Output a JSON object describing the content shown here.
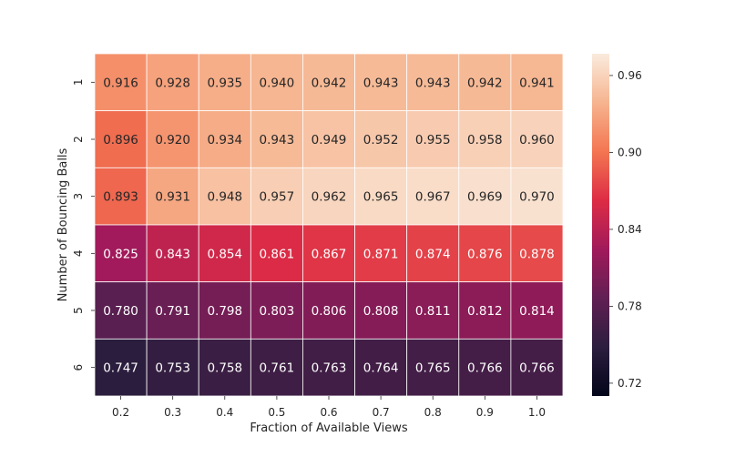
{
  "chart_data": {
    "type": "heatmap",
    "title": "",
    "xlabel": "Fraction of Available Views",
    "ylabel": "Number of Bouncing Balls",
    "x_categories": [
      "0.2",
      "0.3",
      "0.4",
      "0.5",
      "0.6",
      "0.7",
      "0.8",
      "0.9",
      "1.0"
    ],
    "y_categories": [
      "1",
      "2",
      "3",
      "4",
      "5",
      "6"
    ],
    "values": [
      [
        0.916,
        0.928,
        0.935,
        0.94,
        0.942,
        0.943,
        0.943,
        0.942,
        0.941
      ],
      [
        0.896,
        0.92,
        0.934,
        0.943,
        0.949,
        0.952,
        0.955,
        0.958,
        0.96
      ],
      [
        0.893,
        0.931,
        0.948,
        0.957,
        0.962,
        0.965,
        0.967,
        0.969,
        0.97
      ],
      [
        0.825,
        0.843,
        0.854,
        0.861,
        0.867,
        0.871,
        0.874,
        0.876,
        0.878
      ],
      [
        0.78,
        0.791,
        0.798,
        0.803,
        0.806,
        0.808,
        0.811,
        0.812,
        0.814
      ],
      [
        0.747,
        0.753,
        0.758,
        0.761,
        0.763,
        0.764,
        0.765,
        0.766,
        0.766
      ]
    ],
    "colorbar": {
      "vmin": 0.71,
      "vmax": 0.977,
      "ticks": [
        0.96,
        0.9,
        0.84,
        0.78,
        0.72
      ],
      "tick_labels": [
        "0.96",
        "0.90",
        "0.84",
        "0.78",
        "0.72"
      ],
      "colormap": "rocket",
      "colormap_stops": [
        "#03051a",
        "#2c1e3e",
        "#611f53",
        "#a11a5b",
        "#dd2c45",
        "#f37651",
        "#f6b48f",
        "#faebdd"
      ]
    },
    "annotation_format": "3 decimals",
    "grid": false,
    "cell_border_color": "#ffffff"
  }
}
